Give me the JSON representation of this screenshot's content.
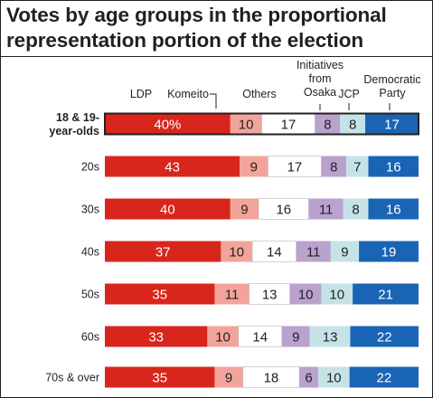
{
  "title_line1": "Votes by age groups in the proportional",
  "title_line2": "representation portion of the election",
  "chart_data": {
    "type": "bar",
    "stacked": true,
    "orientation": "horizontal",
    "percent_labels": true,
    "title": "Votes by age groups in the proportional representation portion of the election",
    "categories": [
      "18 & 19-year-olds",
      "20s",
      "30s",
      "40s",
      "50s",
      "60s",
      "70s & over"
    ],
    "category_lines": [
      [
        "18 & 19-",
        "year-olds"
      ],
      [
        "20s"
      ],
      [
        "30s"
      ],
      [
        "40s"
      ],
      [
        "50s"
      ],
      [
        "60s"
      ],
      [
        "70s & over"
      ]
    ],
    "value_labels": [
      [
        "40%",
        "10",
        "17",
        "8",
        "8",
        "17"
      ],
      [
        "43",
        "9",
        "17",
        "8",
        "7",
        "16"
      ],
      [
        "40",
        "9",
        "16",
        "11",
        "8",
        "16"
      ],
      [
        "37",
        "10",
        "14",
        "11",
        "9",
        "19"
      ],
      [
        "35",
        "11",
        "13",
        "10",
        "10",
        "21"
      ],
      [
        "33",
        "10",
        "14",
        "9",
        "13",
        "22"
      ],
      [
        "35",
        "9",
        "18",
        "6",
        "10",
        "22"
      ]
    ],
    "series": [
      {
        "name": "LDP",
        "label_lines": [
          "LDP"
        ],
        "color": "#d9261c",
        "text_color": "#ffffff",
        "values": [
          40,
          43,
          40,
          37,
          35,
          33,
          35
        ]
      },
      {
        "name": "Komeito",
        "label_lines": [
          "Komeito"
        ],
        "color": "#f3a49a",
        "text_color": "#231f20",
        "values": [
          10,
          9,
          9,
          10,
          11,
          10,
          9
        ]
      },
      {
        "name": "Others",
        "label_lines": [
          "Others"
        ],
        "color": "#ffffff",
        "text_color": "#231f20",
        "values": [
          17,
          17,
          16,
          14,
          13,
          14,
          18
        ]
      },
      {
        "name": "Initiatives from Osaka",
        "label_lines": [
          "Initiatives",
          "from",
          "Osaka"
        ],
        "color": "#b9a2cd",
        "text_color": "#231f20",
        "values": [
          8,
          8,
          11,
          11,
          10,
          9,
          6
        ]
      },
      {
        "name": "JCP",
        "label_lines": [
          "JCP"
        ],
        "color": "#c5e3e6",
        "text_color": "#231f20",
        "values": [
          8,
          7,
          8,
          9,
          10,
          13,
          10
        ]
      },
      {
        "name": "Democratic Party",
        "label_lines": [
          "Democratic",
          "Party"
        ],
        "color": "#1a64b6",
        "text_color": "#ffffff",
        "values": [
          17,
          16,
          16,
          19,
          21,
          22,
          22
        ]
      }
    ],
    "highlight_category": "18 & 19-year-olds",
    "legend_position": "top"
  }
}
